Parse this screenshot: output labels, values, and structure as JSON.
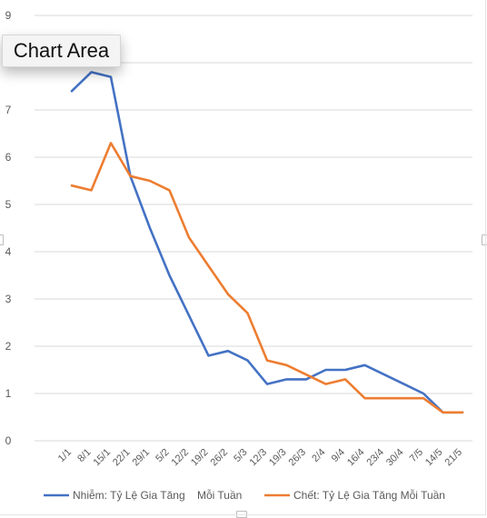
{
  "tooltip": {
    "label": "Chart Area"
  },
  "chart_data": {
    "type": "line",
    "categories": [
      "1/1",
      "8/1",
      "15/1",
      "22/1",
      "29/1",
      "5/2",
      "12/2",
      "19/2",
      "26/2",
      "5/3",
      "12/3",
      "19/3",
      "26/3",
      "2/4",
      "9/4",
      "16/4",
      "23/4",
      "30/4",
      "7/5",
      "14/5",
      "21/5"
    ],
    "ylim": [
      0,
      9
    ],
    "yticks": [
      0,
      1,
      2,
      3,
      4,
      5,
      6,
      7,
      8,
      9
    ],
    "grid": true,
    "legend_position": "bottom",
    "series": [
      {
        "name": "Nhiễm: Tỷ Lệ Gia Tăng    Mỗi Tuần",
        "color": "#4472C4",
        "values": [
          7.4,
          7.8,
          7.7,
          5.6,
          4.5,
          3.5,
          2.65,
          1.8,
          1.9,
          1.7,
          1.2,
          1.3,
          1.3,
          1.5,
          1.5,
          1.6,
          1.4,
          1.2,
          1.0,
          0.6,
          0.6
        ]
      },
      {
        "name": "Chết: Tỷ Lệ Gia Tăng Mỗi Tuần",
        "color": "#ED7D31",
        "values": [
          5.4,
          5.3,
          6.3,
          5.6,
          5.5,
          5.3,
          4.3,
          3.7,
          3.1,
          2.7,
          1.7,
          1.6,
          1.4,
          1.2,
          1.3,
          0.9,
          0.9,
          0.9,
          0.9,
          0.6,
          0.6
        ]
      }
    ]
  }
}
